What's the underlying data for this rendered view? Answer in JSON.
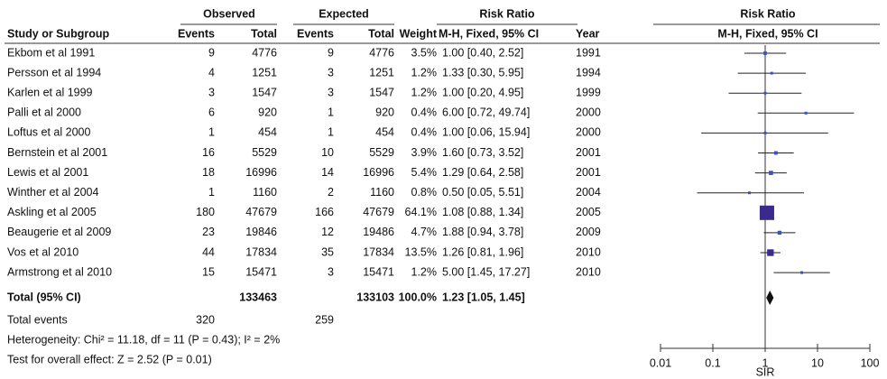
{
  "chart_data": {
    "type": "forest",
    "headers": {
      "group_observed": "Observed",
      "group_expected": "Expected",
      "group_ratio": "Risk Ratio",
      "group_plot": "Risk Ratio",
      "study": "Study or Subgroup",
      "obs_events": "Events",
      "obs_total": "Total",
      "exp_events": "Events",
      "exp_total": "Total",
      "weight": "Weight",
      "method": "M-H, Fixed, 95% CI",
      "year": "Year",
      "plot_method": "M-H, Fixed, 95% CI"
    },
    "studies": [
      {
        "name": "Ekbom et al 1991",
        "obs_events": 9,
        "obs_total": 4776,
        "exp_events": 9,
        "exp_total": 4776,
        "weight": 3.5,
        "weight_label": "3.5%",
        "rr": 1.0,
        "lo": 0.4,
        "hi": 2.52,
        "ci_label": "1.00 [0.40, 2.52]",
        "year": 1991
      },
      {
        "name": "Persson et al 1994",
        "obs_events": 4,
        "obs_total": 1251,
        "exp_events": 3,
        "exp_total": 1251,
        "weight": 1.2,
        "weight_label": "1.2%",
        "rr": 1.33,
        "lo": 0.3,
        "hi": 5.95,
        "ci_label": "1.33 [0.30, 5.95]",
        "year": 1994
      },
      {
        "name": "Karlen et al 1999",
        "obs_events": 3,
        "obs_total": 1547,
        "exp_events": 3,
        "exp_total": 1547,
        "weight": 1.2,
        "weight_label": "1.2%",
        "rr": 1.0,
        "lo": 0.2,
        "hi": 4.95,
        "ci_label": "1.00 [0.20, 4.95]",
        "year": 1999
      },
      {
        "name": "Palli et al 2000",
        "obs_events": 6,
        "obs_total": 920,
        "exp_events": 1,
        "exp_total": 920,
        "weight": 0.4,
        "weight_label": "0.4%",
        "rr": 6.0,
        "lo": 0.72,
        "hi": 49.74,
        "ci_label": "6.00 [0.72, 49.74]",
        "year": 2000
      },
      {
        "name": "Loftus et al 2000",
        "obs_events": 1,
        "obs_total": 454,
        "exp_events": 1,
        "exp_total": 454,
        "weight": 0.4,
        "weight_label": "0.4%",
        "rr": 1.0,
        "lo": 0.06,
        "hi": 15.94,
        "ci_label": "1.00 [0.06, 15.94]",
        "year": 2000
      },
      {
        "name": "Bernstein et al 2001",
        "obs_events": 16,
        "obs_total": 5529,
        "exp_events": 10,
        "exp_total": 5529,
        "weight": 3.9,
        "weight_label": "3.9%",
        "rr": 1.6,
        "lo": 0.73,
        "hi": 3.52,
        "ci_label": "1.60 [0.73, 3.52]",
        "year": 2001
      },
      {
        "name": "Lewis et al 2001",
        "obs_events": 18,
        "obs_total": 16996,
        "exp_events": 14,
        "exp_total": 16996,
        "weight": 5.4,
        "weight_label": "5.4%",
        "rr": 1.29,
        "lo": 0.64,
        "hi": 2.58,
        "ci_label": "1.29 [0.64, 2.58]",
        "year": 2001
      },
      {
        "name": "Winther et al 2004",
        "obs_events": 1,
        "obs_total": 1160,
        "exp_events": 2,
        "exp_total": 1160,
        "weight": 0.8,
        "weight_label": "0.8%",
        "rr": 0.5,
        "lo": 0.05,
        "hi": 5.51,
        "ci_label": "0.50 [0.05, 5.51]",
        "year": 2004
      },
      {
        "name": "Askling et al 2005",
        "obs_events": 180,
        "obs_total": 47679,
        "exp_events": 166,
        "exp_total": 47679,
        "weight": 64.1,
        "weight_label": "64.1%",
        "rr": 1.08,
        "lo": 0.88,
        "hi": 1.34,
        "ci_label": "1.08 [0.88, 1.34]",
        "year": 2005
      },
      {
        "name": "Beaugerie et al 2009",
        "obs_events": 23,
        "obs_total": 19846,
        "exp_events": 12,
        "exp_total": 19486,
        "weight": 4.7,
        "weight_label": "4.7%",
        "rr": 1.88,
        "lo": 0.94,
        "hi": 3.78,
        "ci_label": "1.88 [0.94, 3.78]",
        "year": 2009
      },
      {
        "name": "Vos et al 2010",
        "obs_events": 44,
        "obs_total": 17834,
        "exp_events": 35,
        "exp_total": 17834,
        "weight": 13.5,
        "weight_label": "13.5%",
        "rr": 1.26,
        "lo": 0.81,
        "hi": 1.96,
        "ci_label": "1.26 [0.81, 1.96]",
        "year": 2010
      },
      {
        "name": "Armstrong et al 2010",
        "obs_events": 15,
        "obs_total": 15471,
        "exp_events": 3,
        "exp_total": 15471,
        "weight": 1.2,
        "weight_label": "1.2%",
        "rr": 5.0,
        "lo": 1.45,
        "hi": 17.27,
        "ci_label": "5.00 [1.45, 17.27]",
        "year": 2010
      }
    ],
    "total": {
      "name": "Total (95% CI)",
      "obs_total": 133463,
      "exp_total": 133103,
      "weight_label": "100.0%",
      "rr": 1.23,
      "lo": 1.05,
      "hi": 1.45,
      "ci_label": "1.23 [1.05, 1.45]"
    },
    "total_events": {
      "name": "Total events",
      "obs_events": 320,
      "exp_events": 259
    },
    "heterogeneity": "Heterogeneity: Chi² = 11.18, df = 11 (P = 0.43); I² = 2%",
    "overall_effect": "Test for overall effect: Z = 2.52 (P = 0.01)",
    "xlabel": "SIR",
    "log_x": true,
    "xlim": [
      0.01,
      100
    ],
    "xticks": [
      0.01,
      0.1,
      1,
      10,
      100
    ],
    "ci_color": "#222222",
    "point_color": "#3a4fc8",
    "box_color": "#3b2a8c",
    "diamond_color": "#111111"
  }
}
